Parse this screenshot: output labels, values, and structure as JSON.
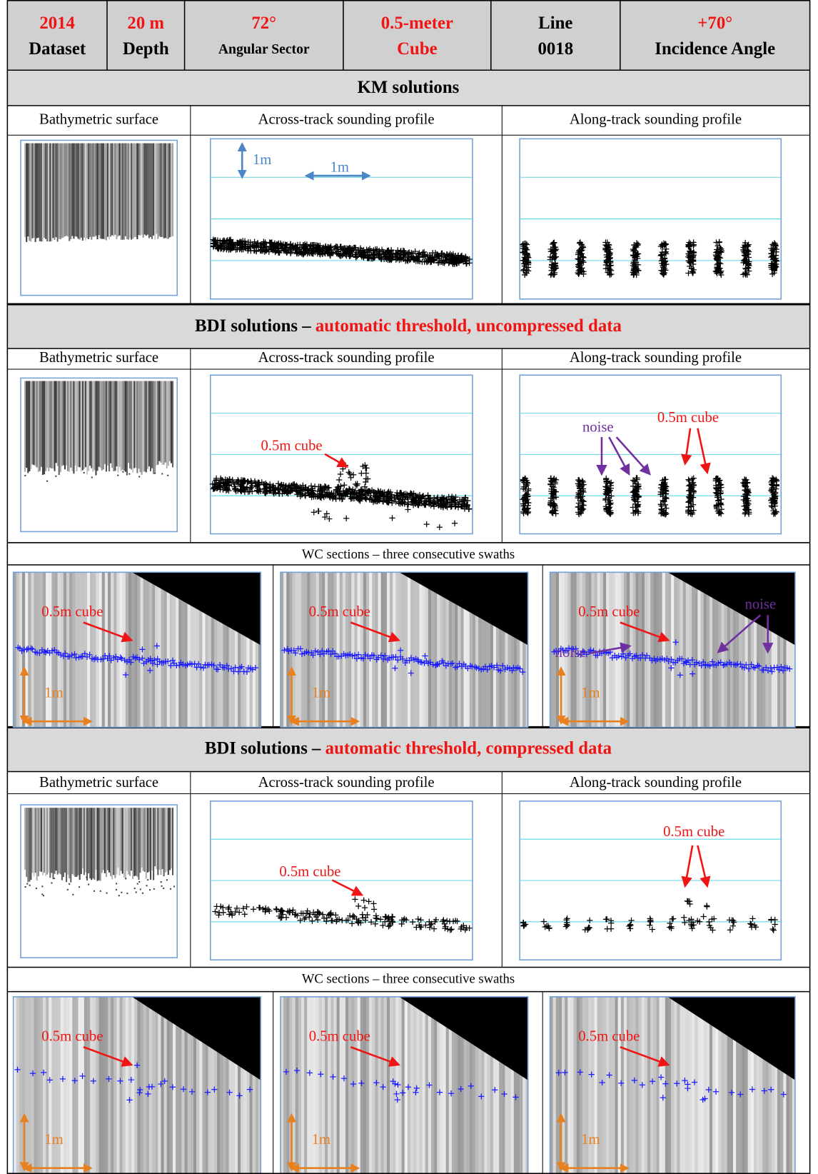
{
  "header": {
    "cells": [
      [
        "2014",
        "Dataset"
      ],
      [
        "20 m",
        "Depth"
      ],
      [
        "72°",
        "Angular Sector"
      ],
      [
        "0.5-meter",
        "Cube"
      ],
      [
        "Line",
        "0018"
      ],
      [
        "+70°",
        "Incidence Angle"
      ]
    ]
  },
  "sections": [
    {
      "title": "KM solutions",
      "panels": [
        "Bathymetric surface",
        "Across-track sounding profile",
        "Along-track sounding profile"
      ],
      "across_scale": [
        "1m",
        "1m"
      ]
    },
    {
      "title": "BDI solutions – ",
      "title_highlight": "automatic threshold, uncompressed data",
      "panels": [
        "Bathymetric surface",
        "Across-track sounding profile",
        "Along-track sounding profile"
      ],
      "across_annotation": "0.5m cube",
      "along_annotations": [
        "noise",
        "0.5m cube"
      ],
      "wc_caption": "WC sections – three consecutive swaths",
      "wc_panels": [
        [
          "0.5m cube",
          "1m"
        ],
        [
          "0.5m cube",
          "1m"
        ],
        [
          "0.5m cube",
          "noise",
          "noise",
          "1m"
        ]
      ]
    },
    {
      "title": "BDI solutions – ",
      "title_highlight": "automatic threshold, compressed data",
      "panels": [
        "Bathymetric surface",
        "Across-track sounding profile",
        "Along-track sounding profile"
      ],
      "across_annotation": "0.5m cube",
      "along_annotations": [
        "0.5m cube"
      ],
      "wc_caption": "WC sections – three consecutive swaths",
      "wc_panels": [
        [
          "0.5m cube",
          "1m"
        ],
        [
          "0.5m cube",
          "1m"
        ],
        [
          "0.5m cube",
          "1m"
        ]
      ]
    }
  ]
}
